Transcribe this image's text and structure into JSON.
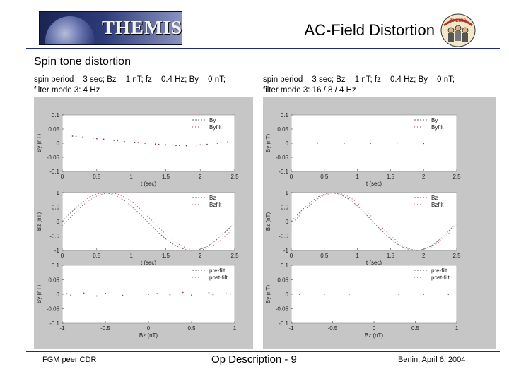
{
  "header": {
    "banner_text": "THEMIS",
    "slide_title": "AC-Field Distortion",
    "logo_text": "THEMIS"
  },
  "section_title": "Spin tone distortion",
  "panels": [
    {
      "caption_line1": "spin period = 3 sec; Bz = 1 nT; fz = 0.4 Hz; By = 0 nT;",
      "caption_line2": "filter mode 3: 4 Hz"
    },
    {
      "caption_line1": "spin period = 3 sec; Bz = 1 nT; fz = 0.4 Hz; By = 0 nT;",
      "caption_line2": "filter mode 3: 16 / 8 / 4 Hz"
    }
  ],
  "footer": {
    "left": "FGM peer CDR",
    "center": "Op Description - 9",
    "right": "Berlin, April 6, 2004"
  },
  "colors": {
    "rule": "#1b2a8a",
    "panel_bg": "#c6c6c6",
    "plot_bg": "#ffffff"
  },
  "chart_data": [
    {
      "type": "scatter",
      "panel": 1,
      "position_in_panel": "top",
      "ylabel": "By (nT)",
      "xlabel": "t (sec)",
      "xlim": [
        0,
        2.5
      ],
      "ylim": [
        -0.1,
        0.1
      ],
      "x_ticks": [
        "0",
        "0.5",
        "1",
        "1.5",
        "2",
        "2.5"
      ],
      "y_ticks": [
        "0.1",
        "0.05",
        "0",
        "-0.05",
        "-0.1"
      ],
      "legend": [
        "By",
        "Byfilt"
      ],
      "series": [
        {
          "name": "By",
          "points": [
            [
              0.15,
              0.025
            ],
            [
              0.3,
              0.022
            ],
            [
              0.45,
              0.018
            ],
            [
              0.6,
              0.014
            ],
            [
              0.75,
              0.01
            ],
            [
              0.9,
              0.006
            ],
            [
              1.05,
              0.003
            ],
            [
              1.2,
              0.0
            ],
            [
              1.35,
              -0.003
            ],
            [
              1.5,
              -0.006
            ],
            [
              1.65,
              -0.008
            ],
            [
              1.8,
              -0.009
            ],
            [
              1.95,
              -0.007
            ],
            [
              2.1,
              -0.004
            ],
            [
              2.25,
              0.0
            ],
            [
              2.4,
              0.005
            ]
          ]
        },
        {
          "name": "Byfilt",
          "points": [
            [
              0.2,
              0.024
            ],
            [
              0.5,
              0.016
            ],
            [
              0.8,
              0.009
            ],
            [
              1.1,
              0.002
            ],
            [
              1.4,
              -0.004
            ],
            [
              1.7,
              -0.008
            ],
            [
              2.0,
              -0.006
            ],
            [
              2.3,
              0.002
            ]
          ]
        }
      ]
    },
    {
      "type": "line",
      "panel": 1,
      "position_in_panel": "middle",
      "ylabel": "Bz (nT)",
      "xlabel": "t (sec)",
      "xlim": [
        0,
        2.5
      ],
      "ylim": [
        -1,
        1
      ],
      "x_ticks": [
        "0",
        "0.5",
        "1",
        "1.5",
        "2",
        "2.5"
      ],
      "y_ticks": [
        "1",
        "0.5",
        "0",
        "-0.5",
        "-1"
      ],
      "legend": [
        "Bz",
        "Bzfilt"
      ],
      "series": [
        {
          "name": "Bz",
          "x": [
            0,
            0.1,
            0.2,
            0.3,
            0.4,
            0.5,
            0.6,
            0.7,
            0.8,
            0.9,
            1.0,
            1.1,
            1.2,
            1.3,
            1.4,
            1.5,
            1.6,
            1.7,
            1.8,
            1.9,
            2.0,
            2.1,
            2.2,
            2.3,
            2.4,
            2.5
          ],
          "y": [
            0.0,
            0.25,
            0.48,
            0.68,
            0.85,
            0.95,
            1.0,
            0.96,
            0.87,
            0.73,
            0.54,
            0.32,
            0.08,
            -0.16,
            -0.39,
            -0.6,
            -0.77,
            -0.9,
            -0.98,
            -1.0,
            -0.96,
            -0.86,
            -0.7,
            -0.5,
            -0.28,
            -0.04
          ]
        },
        {
          "name": "Bzfilt",
          "x": [
            0,
            0.1,
            0.2,
            0.3,
            0.4,
            0.5,
            0.6,
            0.7,
            0.8,
            0.9,
            1.0,
            1.1,
            1.2,
            1.3,
            1.4,
            1.5,
            1.6,
            1.7,
            1.8,
            1.9,
            2.0,
            2.1,
            2.2,
            2.3,
            2.4,
            2.5
          ],
          "y": [
            -0.15,
            0.1,
            0.34,
            0.56,
            0.75,
            0.88,
            0.96,
            0.99,
            0.95,
            0.85,
            0.7,
            0.5,
            0.28,
            0.04,
            -0.2,
            -0.43,
            -0.63,
            -0.8,
            -0.92,
            -0.99,
            -0.99,
            -0.93,
            -0.81,
            -0.64,
            -0.43,
            -0.2
          ]
        }
      ]
    },
    {
      "type": "scatter",
      "panel": 1,
      "position_in_panel": "bottom",
      "ylabel": "By (nT)",
      "xlabel": "Bz (nT)",
      "xlim": [
        -1,
        1
      ],
      "ylim": [
        -0.1,
        0.1
      ],
      "x_ticks": [
        "-1",
        "-0.5",
        "0",
        "0.5",
        "1"
      ],
      "y_ticks": [
        "0.1",
        "0.05",
        "0",
        "-0.05",
        "-0.1"
      ],
      "legend": [
        "pre-filt",
        "post-filt"
      ],
      "series": [
        {
          "name": "pre-filt",
          "points": [
            [
              -0.95,
              0.002
            ],
            [
              -0.75,
              0.004
            ],
            [
              -0.5,
              0.003
            ],
            [
              -0.25,
              0.001
            ],
            [
              0.0,
              0.0
            ],
            [
              0.25,
              -0.002
            ],
            [
              0.5,
              -0.003
            ],
            [
              0.75,
              -0.002
            ],
            [
              0.95,
              0.001
            ]
          ]
        },
        {
          "name": "post-filt",
          "points": [
            [
              -0.9,
              -0.003
            ],
            [
              -0.6,
              -0.006
            ],
            [
              -0.3,
              -0.004
            ],
            [
              0.1,
              0.002
            ],
            [
              0.4,
              0.006
            ],
            [
              0.7,
              0.005
            ],
            [
              0.9,
              0.002
            ]
          ]
        }
      ]
    },
    {
      "type": "scatter",
      "panel": 2,
      "position_in_panel": "top",
      "ylabel": "By (nT)",
      "xlabel": "t (sec)",
      "xlim": [
        0,
        2.5
      ],
      "ylim": [
        -0.1,
        0.1
      ],
      "x_ticks": [
        "0",
        "0.5",
        "1",
        "1.5",
        "2",
        "2.5"
      ],
      "y_ticks": [
        "0.1",
        "0.05",
        "0",
        "-0.05",
        "-0.1"
      ],
      "legend": [
        "By",
        "Byfilt"
      ],
      "series": [
        {
          "name": "By",
          "points": [
            [
              0.4,
              0.001
            ],
            [
              1.2,
              0.0
            ],
            [
              2.0,
              -0.001
            ]
          ]
        },
        {
          "name": "Byfilt",
          "points": [
            [
              0.8,
              0.0
            ],
            [
              1.6,
              0.001
            ]
          ]
        }
      ]
    },
    {
      "type": "line",
      "panel": 2,
      "position_in_panel": "middle",
      "ylabel": "Bz (nT)",
      "xlabel": "t (sec)",
      "xlim": [
        0,
        2.5
      ],
      "ylim": [
        -1,
        1
      ],
      "x_ticks": [
        "0",
        "0.5",
        "1",
        "1.5",
        "2",
        "2.5"
      ],
      "y_ticks": [
        "1",
        "0.5",
        "0",
        "-0.5",
        "-1"
      ],
      "legend": [
        "Bz",
        "Bzfilt"
      ],
      "series": [
        {
          "name": "Bz",
          "x": [
            0,
            0.1,
            0.2,
            0.3,
            0.4,
            0.5,
            0.6,
            0.7,
            0.8,
            0.9,
            1.0,
            1.1,
            1.2,
            1.3,
            1.4,
            1.5,
            1.6,
            1.7,
            1.8,
            1.9,
            2.0,
            2.1,
            2.2,
            2.3,
            2.4,
            2.5
          ],
          "y": [
            0.0,
            0.25,
            0.48,
            0.68,
            0.85,
            0.95,
            1.0,
            0.96,
            0.87,
            0.73,
            0.54,
            0.32,
            0.08,
            -0.16,
            -0.39,
            -0.6,
            -0.77,
            -0.9,
            -0.98,
            -1.0,
            -0.96,
            -0.86,
            -0.7,
            -0.5,
            -0.28,
            -0.04
          ]
        },
        {
          "name": "Bzfilt",
          "x": [
            0,
            0.1,
            0.2,
            0.3,
            0.4,
            0.5,
            0.6,
            0.7,
            0.8,
            0.9,
            1.0,
            1.1,
            1.2,
            1.3,
            1.4,
            1.5,
            1.6,
            1.7,
            1.8,
            1.9,
            2.0,
            2.1,
            2.2,
            2.3,
            2.4,
            2.5
          ],
          "y": [
            -0.1,
            0.15,
            0.39,
            0.6,
            0.78,
            0.91,
            0.98,
            0.99,
            0.93,
            0.82,
            0.65,
            0.44,
            0.21,
            -0.03,
            -0.27,
            -0.49,
            -0.68,
            -0.84,
            -0.95,
            -1.0,
            -0.98,
            -0.9,
            -0.76,
            -0.58,
            -0.36,
            -0.12
          ]
        }
      ]
    },
    {
      "type": "scatter",
      "panel": 2,
      "position_in_panel": "bottom",
      "ylabel": "By (nT)",
      "xlabel": "Bz (nT)",
      "xlim": [
        -1,
        1
      ],
      "ylim": [
        -0.1,
        0.1
      ],
      "x_ticks": [
        "-1",
        "-0.5",
        "0",
        "0.5",
        "1"
      ],
      "y_ticks": [
        "0.1",
        "0.05",
        "0",
        "-0.05",
        "-0.1"
      ],
      "legend": [
        "pre-filt",
        "post-filt"
      ],
      "series": [
        {
          "name": "pre-filt",
          "points": [
            [
              -0.9,
              0.0
            ],
            [
              -0.3,
              0.0
            ],
            [
              0.3,
              0.0
            ],
            [
              0.9,
              0.0
            ]
          ]
        },
        {
          "name": "post-filt",
          "points": [
            [
              -0.6,
              0.0
            ],
            [
              0.6,
              0.0
            ]
          ]
        }
      ]
    }
  ]
}
